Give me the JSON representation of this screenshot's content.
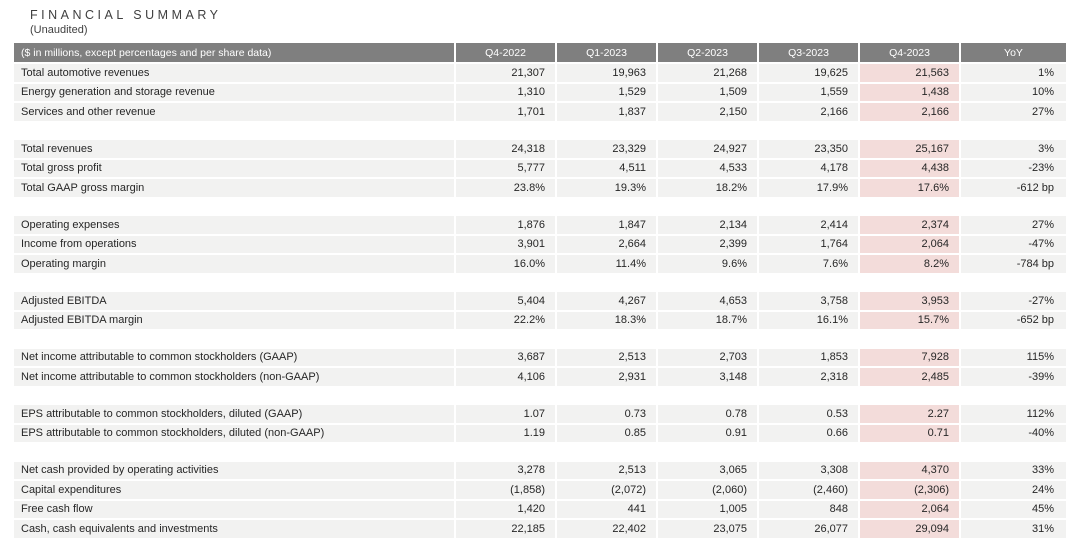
{
  "page": {
    "title": "FINANCIAL SUMMARY",
    "subtitle": "(Unaudited)"
  },
  "colors": {
    "header_bg": "#7f7f7f",
    "header_text": "#ffffff",
    "row_bg": "#f2f2f1",
    "highlight_column_bg": "#f3dcda",
    "body_text": "#262626"
  },
  "table": {
    "header": [
      "($ in millions, except percentages and per share data)",
      "Q4-2022",
      "Q1-2023",
      "Q2-2023",
      "Q3-2023",
      "Q4-2023",
      "YoY"
    ],
    "highlighted_column": "Q4-2023",
    "groups": [
      {
        "rows": [
          {
            "label": "Total automotive revenues",
            "values": [
              "21,307",
              "19,963",
              "21,268",
              "19,625",
              "21,563",
              "1%"
            ]
          },
          {
            "label": "Energy generation and storage revenue",
            "values": [
              "1,310",
              "1,529",
              "1,509",
              "1,559",
              "1,438",
              "10%"
            ]
          },
          {
            "label": "Services and other revenue",
            "values": [
              "1,701",
              "1,837",
              "2,150",
              "2,166",
              "2,166",
              "27%"
            ]
          }
        ]
      },
      {
        "rows": [
          {
            "label": "Total revenues",
            "values": [
              "24,318",
              "23,329",
              "24,927",
              "23,350",
              "25,167",
              "3%"
            ]
          },
          {
            "label": "Total gross profit",
            "values": [
              "5,777",
              "4,511",
              "4,533",
              "4,178",
              "4,438",
              "-23%"
            ]
          },
          {
            "label": "Total GAAP gross margin",
            "values": [
              "23.8%",
              "19.3%",
              "18.2%",
              "17.9%",
              "17.6%",
              "-612 bp"
            ]
          }
        ]
      },
      {
        "rows": [
          {
            "label": "Operating expenses",
            "values": [
              "1,876",
              "1,847",
              "2,134",
              "2,414",
              "2,374",
              "27%"
            ]
          },
          {
            "label": "Income from operations",
            "values": [
              "3,901",
              "2,664",
              "2,399",
              "1,764",
              "2,064",
              "-47%"
            ]
          },
          {
            "label": "Operating margin",
            "values": [
              "16.0%",
              "11.4%",
              "9.6%",
              "7.6%",
              "8.2%",
              "-784 bp"
            ]
          }
        ]
      },
      {
        "rows": [
          {
            "label": "Adjusted EBITDA",
            "values": [
              "5,404",
              "4,267",
              "4,653",
              "3,758",
              "3,953",
              "-27%"
            ]
          },
          {
            "label": "Adjusted EBITDA margin",
            "values": [
              "22.2%",
              "18.3%",
              "18.7%",
              "16.1%",
              "15.7%",
              "-652 bp"
            ]
          }
        ]
      },
      {
        "rows": [
          {
            "label": "Net income attributable to common stockholders (GAAP)",
            "values": [
              "3,687",
              "2,513",
              "2,703",
              "1,853",
              "7,928",
              "115%"
            ]
          },
          {
            "label": "Net income attributable to common stockholders (non-GAAP)",
            "values": [
              "4,106",
              "2,931",
              "3,148",
              "2,318",
              "2,485",
              "-39%"
            ]
          }
        ]
      },
      {
        "rows": [
          {
            "label": "EPS attributable to common stockholders, diluted (GAAP)",
            "values": [
              "1.07",
              "0.73",
              "0.78",
              "0.53",
              "2.27",
              "112%"
            ]
          },
          {
            "label": "EPS attributable to common stockholders, diluted (non-GAAP)",
            "values": [
              "1.19",
              "0.85",
              "0.91",
              "0.66",
              "0.71",
              "-40%"
            ]
          }
        ]
      },
      {
        "rows": [
          {
            "label": "Net cash provided by operating activities",
            "values": [
              "3,278",
              "2,513",
              "3,065",
              "3,308",
              "4,370",
              "33%"
            ]
          },
          {
            "label": "Capital expenditures",
            "values": [
              "(1,858)",
              "(2,072)",
              "(2,060)",
              "(2,460)",
              "(2,306)",
              "24%"
            ]
          },
          {
            "label": "Free cash flow",
            "values": [
              "1,420",
              "441",
              "1,005",
              "848",
              "2,064",
              "45%"
            ]
          },
          {
            "label": "Cash, cash equivalents and investments",
            "values": [
              "22,185",
              "22,402",
              "23,075",
              "26,077",
              "29,094",
              "31%"
            ]
          }
        ]
      }
    ]
  }
}
